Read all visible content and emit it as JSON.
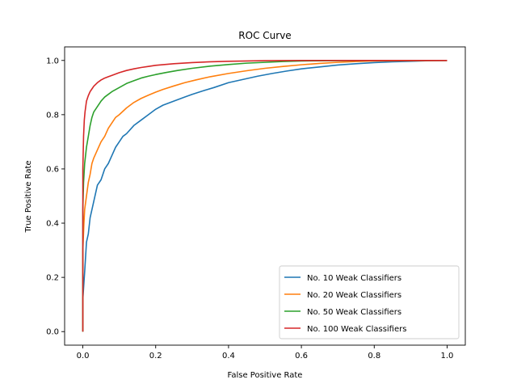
{
  "chart_data": {
    "type": "line",
    "title": "ROC Curve",
    "xlabel": "False Positive Rate",
    "ylabel": "True Positive Rate",
    "xlim": [
      -0.05,
      1.05
    ],
    "ylim": [
      -0.05,
      1.05
    ],
    "xticks": [
      0.0,
      0.2,
      0.4,
      0.6,
      0.8,
      1.0
    ],
    "yticks": [
      0.0,
      0.2,
      0.4,
      0.6,
      0.8,
      1.0
    ],
    "xtick_labels": [
      "0.0",
      "0.2",
      "0.4",
      "0.6",
      "0.8",
      "1.0"
    ],
    "ytick_labels": [
      "0.0",
      "0.2",
      "0.4",
      "0.6",
      "0.8",
      "1.0"
    ],
    "grid": false,
    "legend_position": "lower-right",
    "series": [
      {
        "name": "No. 10 Weak Classifiers",
        "color": "#1f77b4",
        "x": [
          0.0,
          0.0,
          0.003,
          0.005,
          0.01,
          0.015,
          0.02,
          0.03,
          0.04,
          0.05,
          0.06,
          0.07,
          0.08,
          0.09,
          0.1,
          0.11,
          0.12,
          0.14,
          0.16,
          0.18,
          0.2,
          0.22,
          0.24,
          0.26,
          0.28,
          0.3,
          0.33,
          0.36,
          0.4,
          0.44,
          0.48,
          0.52,
          0.56,
          0.6,
          0.65,
          0.7,
          0.75,
          0.8,
          0.85,
          0.9,
          0.95,
          1.0
        ],
        "y": [
          0.0,
          0.12,
          0.18,
          0.22,
          0.33,
          0.36,
          0.42,
          0.48,
          0.54,
          0.56,
          0.6,
          0.62,
          0.65,
          0.68,
          0.7,
          0.72,
          0.73,
          0.76,
          0.78,
          0.8,
          0.82,
          0.835,
          0.845,
          0.855,
          0.865,
          0.875,
          0.888,
          0.9,
          0.918,
          0.93,
          0.942,
          0.952,
          0.961,
          0.969,
          0.976,
          0.983,
          0.988,
          0.992,
          0.995,
          0.997,
          0.999,
          1.0
        ]
      },
      {
        "name": "No. 20 Weak Classifiers",
        "color": "#ff7f0e",
        "x": [
          0.0,
          0.0,
          0.003,
          0.005,
          0.01,
          0.015,
          0.02,
          0.025,
          0.03,
          0.04,
          0.05,
          0.06,
          0.07,
          0.08,
          0.09,
          0.1,
          0.12,
          0.14,
          0.16,
          0.18,
          0.2,
          0.22,
          0.25,
          0.28,
          0.31,
          0.35,
          0.4,
          0.45,
          0.5,
          0.55,
          0.6,
          0.65,
          0.7,
          0.75,
          0.8,
          0.9,
          1.0
        ],
        "y": [
          0.0,
          0.3,
          0.4,
          0.45,
          0.5,
          0.55,
          0.58,
          0.62,
          0.64,
          0.67,
          0.7,
          0.72,
          0.75,
          0.77,
          0.79,
          0.8,
          0.825,
          0.845,
          0.86,
          0.872,
          0.883,
          0.893,
          0.906,
          0.918,
          0.928,
          0.94,
          0.952,
          0.962,
          0.971,
          0.978,
          0.984,
          0.989,
          0.993,
          0.996,
          0.998,
          0.999,
          1.0
        ]
      },
      {
        "name": "No. 50 Weak Classifiers",
        "color": "#2ca02c",
        "x": [
          0.0,
          0.0,
          0.002,
          0.005,
          0.01,
          0.015,
          0.02,
          0.025,
          0.03,
          0.04,
          0.05,
          0.06,
          0.07,
          0.08,
          0.1,
          0.12,
          0.14,
          0.16,
          0.18,
          0.2,
          0.23,
          0.26,
          0.3,
          0.35,
          0.4,
          0.45,
          0.5,
          0.55,
          0.6,
          0.7,
          0.8,
          0.9,
          1.0
        ],
        "y": [
          0.0,
          0.45,
          0.55,
          0.62,
          0.68,
          0.72,
          0.76,
          0.79,
          0.81,
          0.83,
          0.85,
          0.865,
          0.875,
          0.885,
          0.9,
          0.915,
          0.925,
          0.935,
          0.942,
          0.948,
          0.956,
          0.963,
          0.971,
          0.979,
          0.985,
          0.99,
          0.993,
          0.996,
          0.998,
          0.999,
          1.0,
          1.0,
          1.0
        ]
      },
      {
        "name": "No. 100 Weak Classifiers",
        "color": "#d62728",
        "x": [
          0.0,
          0.0,
          0.002,
          0.004,
          0.006,
          0.008,
          0.01,
          0.015,
          0.02,
          0.025,
          0.03,
          0.04,
          0.05,
          0.06,
          0.07,
          0.08,
          0.1,
          0.12,
          0.14,
          0.16,
          0.18,
          0.2,
          0.25,
          0.3,
          0.35,
          0.4,
          0.5,
          0.6,
          0.7,
          0.8,
          1.0
        ],
        "y": [
          0.0,
          0.6,
          0.72,
          0.78,
          0.81,
          0.83,
          0.85,
          0.87,
          0.885,
          0.895,
          0.905,
          0.918,
          0.928,
          0.935,
          0.94,
          0.945,
          0.955,
          0.963,
          0.969,
          0.974,
          0.978,
          0.982,
          0.988,
          0.992,
          0.995,
          0.997,
          0.999,
          1.0,
          1.0,
          1.0,
          1.0
        ]
      }
    ]
  }
}
